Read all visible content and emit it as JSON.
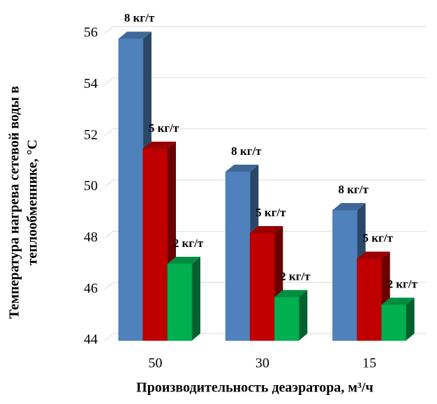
{
  "chart_data": {
    "type": "bar3d",
    "categories": [
      "50",
      "30",
      "15"
    ],
    "series": [
      {
        "name": "8 кг/т",
        "color": "#4f81bd",
        "values": [
          55.8,
          50.6,
          49.1
        ]
      },
      {
        "name": "5 кг/т",
        "color": "#c00000",
        "values": [
          51.5,
          48.2,
          47.2
        ]
      },
      {
        "name": "2 кг/т",
        "color": "#00b050",
        "values": [
          47.0,
          45.7,
          45.4
        ]
      }
    ],
    "x_label": "Производительность деаэратора, м³/ч",
    "y_label": [
      "Температура нагрева сетевой воды в",
      "теплообменнике, °C"
    ],
    "ylim": [
      44,
      56
    ],
    "yticks": [
      44,
      46,
      48,
      50,
      52,
      54,
      56
    ],
    "grid": true
  }
}
